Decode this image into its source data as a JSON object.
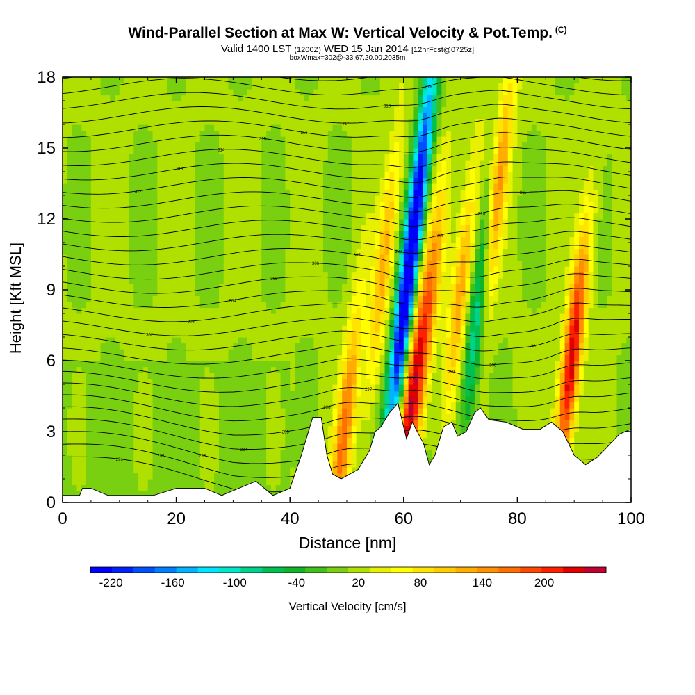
{
  "chart_data": {
    "type": "heatmap",
    "title": "Wind-Parallel Section at Max W: Vertical Velocity & Pot.Temp.",
    "copyright_mark": "(C)",
    "subtitle_main": "Valid 1400 LST",
    "subtitle_utc": "(1200Z)",
    "subtitle_date": "WED 15 Jan 2014",
    "subtitle_fcst": "[12hrFcst@0725z]",
    "box_info": "boxWmax=302@-33.67,20.00,2035m",
    "xlabel": "Distance [nm]",
    "ylabel": "Height [Kft MSL]",
    "xlim": [
      0,
      100
    ],
    "ylim": [
      0,
      18
    ],
    "x_ticks": [
      "0",
      "20",
      "40",
      "60",
      "80",
      "100"
    ],
    "y_ticks": [
      "0",
      "3",
      "6",
      "9",
      "12",
      "15",
      "18"
    ],
    "colorbar": {
      "label": "Vertical Velocity [cm/s]",
      "tick_labels": [
        "-220",
        "-160",
        "-100",
        "-40",
        "20",
        "80",
        "140",
        "200"
      ],
      "range": [
        -240,
        260
      ],
      "colors": [
        "#0000ff",
        "#0020ff",
        "#0050ff",
        "#0080ff",
        "#00b4ff",
        "#00e4ff",
        "#00e6c8",
        "#00d28c",
        "#00c050",
        "#10b428",
        "#40c018",
        "#78d010",
        "#b0e000",
        "#e6f000",
        "#ffff00",
        "#ffe400",
        "#ffcc00",
        "#ffae00",
        "#ff9000",
        "#ff7000",
        "#ff4800",
        "#ff2000",
        "#e00000",
        "#c00030"
      ]
    },
    "updraft_cores": [
      {
        "x": 49.5,
        "z": 3.0,
        "w": 150
      },
      {
        "x": 56.5,
        "z": 10.0,
        "w": 110
      },
      {
        "x": 61.0,
        "z": 4.0,
        "w": 200
      },
      {
        "x": 64.5,
        "z": 8.0,
        "w": 130
      },
      {
        "x": 70.0,
        "z": 9.0,
        "w": 120
      },
      {
        "x": 76.5,
        "z": 13.0,
        "w": 140
      },
      {
        "x": 89.5,
        "z": 6.0,
        "w": 230
      }
    ],
    "downdraft_cores": [
      {
        "x": 59.5,
        "z": 7.0,
        "w": -220
      },
      {
        "x": 63.0,
        "z": 14.0,
        "w": -200
      },
      {
        "x": 73.0,
        "z": 8.0,
        "w": -120
      }
    ],
    "terrain_profile": {
      "x": [
        0,
        3,
        3.5,
        5,
        8,
        12,
        16,
        20,
        25,
        28,
        31,
        34,
        37,
        40,
        42,
        43,
        44,
        45.5,
        46.5,
        47.5,
        49,
        52,
        54,
        55,
        56,
        57.5,
        59,
        60.5,
        61.5,
        63.5,
        64.5,
        65.5,
        67,
        68.5,
        69.5,
        71,
        72.5,
        73.5,
        75,
        78,
        81,
        84,
        86,
        88,
        90,
        92,
        94,
        96,
        98,
        100
      ],
      "z": [
        0.3,
        0.3,
        0.6,
        0.6,
        0.3,
        0.3,
        0.3,
        0.6,
        0.6,
        0.3,
        0.6,
        0.9,
        0.3,
        0.6,
        2.0,
        2.8,
        3.6,
        3.6,
        2.0,
        1.2,
        1.0,
        1.4,
        2.2,
        3.0,
        3.2,
        3.8,
        4.2,
        2.7,
        3.4,
        2.5,
        1.6,
        2.0,
        3.2,
        3.4,
        2.8,
        3.0,
        3.8,
        4.0,
        3.5,
        3.4,
        3.1,
        3.1,
        3.4,
        3.0,
        2.0,
        1.6,
        1.9,
        2.4,
        2.9,
        3.1
      ]
    },
    "isentrope_labels": [
      "291",
      "292",
      "293",
      "294",
      "295",
      "296",
      "297",
      "298",
      "299",
      "300",
      "301",
      "302",
      "303",
      "304",
      "305",
      "306",
      "307",
      "308",
      "309",
      "310",
      "311",
      "312",
      "313",
      "314",
      "315",
      "316",
      "317",
      "318",
      "319",
      "320"
    ]
  }
}
